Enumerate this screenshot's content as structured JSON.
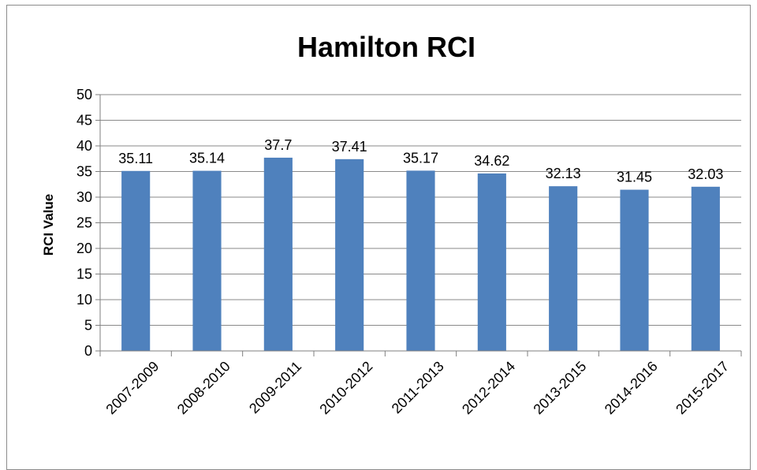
{
  "chart_data": {
    "type": "bar",
    "title": "Hamilton RCI",
    "xlabel": "",
    "ylabel": "RCI Value",
    "categories": [
      "2007-2009",
      "2008-2010",
      "2009-2011",
      "2010-2012",
      "2011-2013",
      "2012-2014",
      "2013-2015",
      "2014-2016",
      "2015-2017"
    ],
    "values": [
      35.11,
      35.14,
      37.7,
      37.41,
      35.17,
      34.62,
      32.13,
      31.45,
      32.03
    ],
    "data_labels": [
      "35.11",
      "35.14",
      "37.7",
      "37.41",
      "35.17",
      "34.62",
      "32.13",
      "31.45",
      "32.03"
    ],
    "ylim": [
      0,
      50
    ],
    "yticks": [
      "0",
      "5",
      "10",
      "15",
      "20",
      "25",
      "30",
      "35",
      "40",
      "45",
      "50"
    ],
    "grid": true,
    "legend": "none",
    "bar_color": "#4f81bd"
  }
}
